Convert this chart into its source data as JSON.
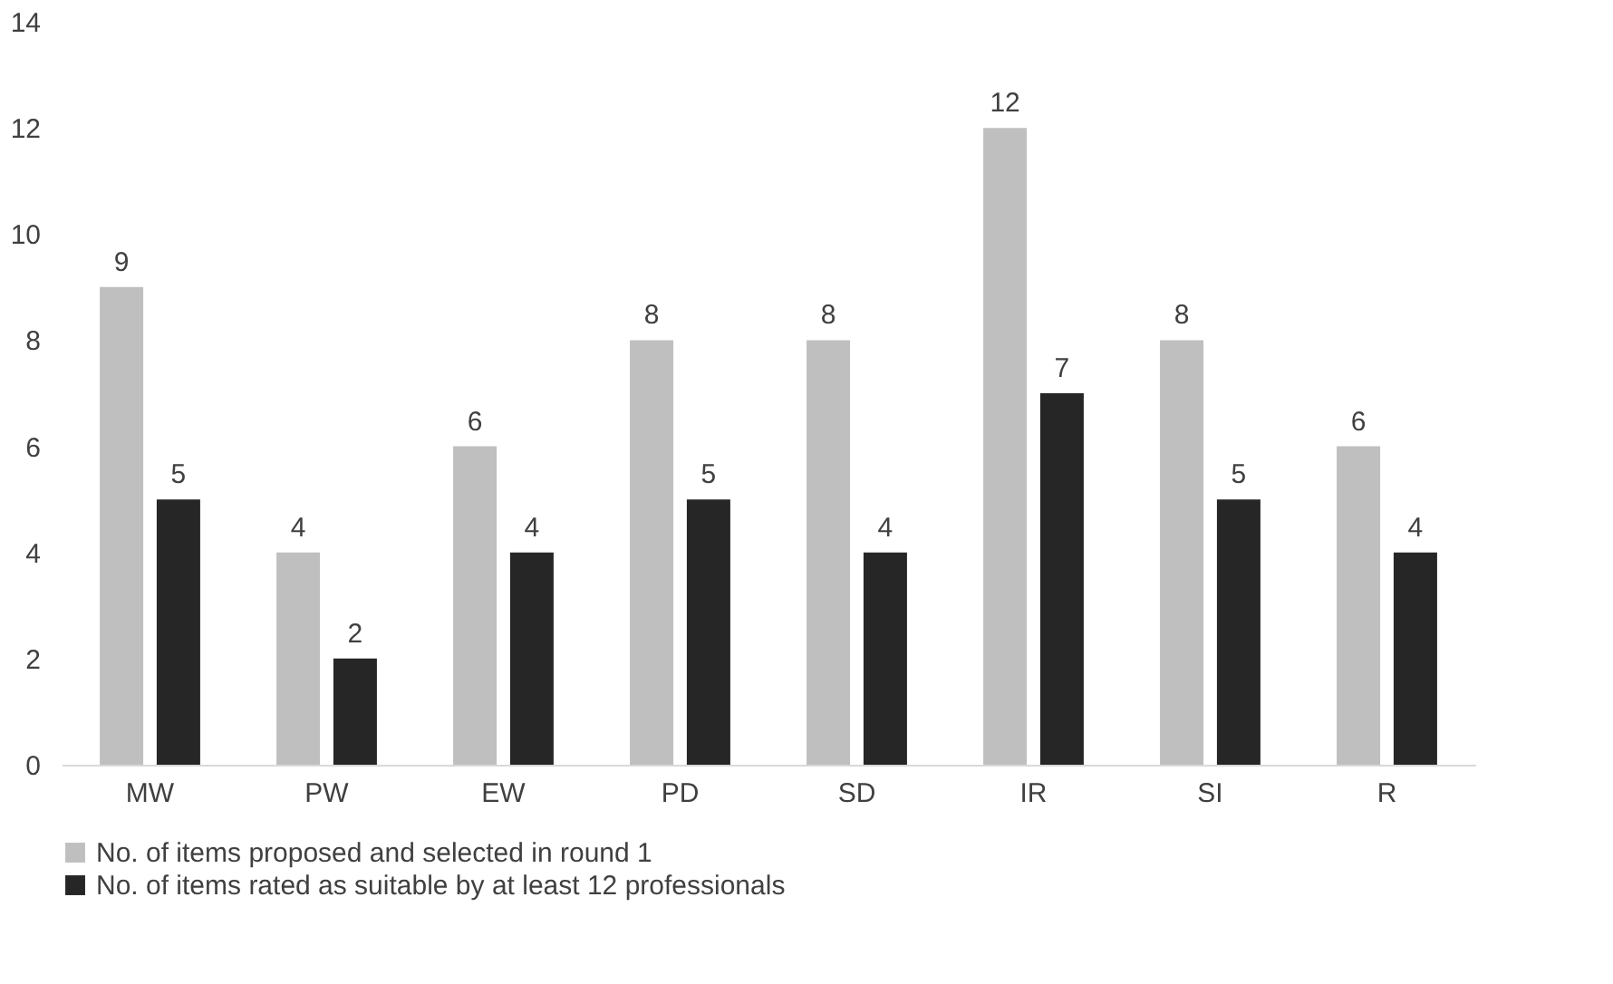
{
  "chart_data": {
    "type": "bar",
    "categories": [
      "MW",
      "PW",
      "EW",
      "PD",
      "SD",
      "IR",
      "SI",
      "R"
    ],
    "series": [
      {
        "name": "No. of items proposed and selected in round 1",
        "color": "#bfbfbf",
        "values": [
          9,
          4,
          6,
          8,
          8,
          12,
          8,
          6
        ]
      },
      {
        "name": "No. of items rated as suitable by at least 12 professionals",
        "color": "#262626",
        "values": [
          5,
          2,
          4,
          5,
          4,
          7,
          5,
          4
        ]
      }
    ],
    "ylim": [
      0,
      14
    ],
    "yticks": [
      0,
      2,
      4,
      6,
      8,
      10,
      12,
      14
    ],
    "grid": false,
    "legend": "bottom",
    "data_labels": true
  }
}
